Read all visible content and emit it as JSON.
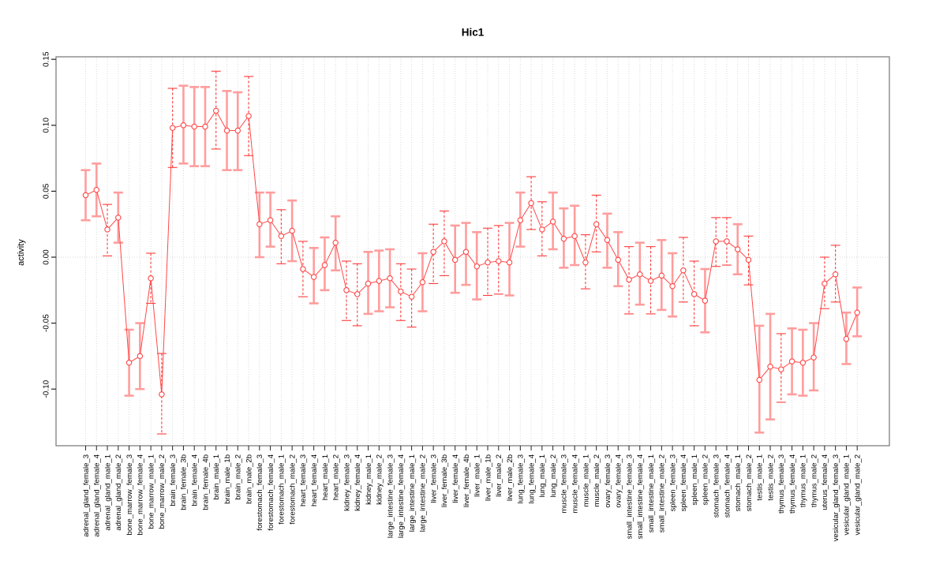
{
  "chart_data": {
    "type": "line",
    "title": "Hic1",
    "xlabel": "",
    "ylabel": "activity",
    "ylim": [
      -0.145,
      0.152
    ],
    "yticks": [
      0.15,
      0.1,
      0.05,
      0,
      -0.05,
      -0.1
    ],
    "ytick_labels": [
      "0.15",
      "0.10",
      "0.05",
      "0.00",
      "-0.05",
      "-0.10"
    ],
    "grid": {
      "vertical_dotted_per_category": true,
      "zero_line_dotted": true
    },
    "legend": null,
    "marker": "open-circle",
    "error_bars": true,
    "series": [
      {
        "name": "activity",
        "points": [
          {
            "label": "adrenal_gland_female_3",
            "value": 0.047,
            "lo": 0.028,
            "hi": 0.066,
            "bar": "light"
          },
          {
            "label": "adrenal_gland_female_4",
            "value": 0.051,
            "lo": 0.031,
            "hi": 0.071,
            "bar": "light"
          },
          {
            "label": "adrenal_gland_male_1",
            "value": 0.021,
            "lo": 0.001,
            "hi": 0.04,
            "bar": "dark"
          },
          {
            "label": "adrenal_gland_male_2",
            "value": 0.03,
            "lo": 0.011,
            "hi": 0.049,
            "bar": "light"
          },
          {
            "label": "bone_marrow_female_3",
            "value": -0.08,
            "lo": -0.105,
            "hi": -0.055,
            "bar": "light"
          },
          {
            "label": "bone_marrow_female_4",
            "value": -0.075,
            "lo": -0.1,
            "hi": -0.05,
            "bar": "light"
          },
          {
            "label": "bone_marrow_male_1",
            "value": -0.016,
            "lo": -0.035,
            "hi": 0.003,
            "bar": "dark"
          },
          {
            "label": "bone_marrow_male_2",
            "value": -0.104,
            "lo": -0.134,
            "hi": -0.073,
            "bar": "dark"
          },
          {
            "label": "brain_female_3",
            "value": 0.098,
            "lo": 0.068,
            "hi": 0.128,
            "bar": "dark"
          },
          {
            "label": "brain_female_3b",
            "value": 0.1,
            "lo": 0.071,
            "hi": 0.13,
            "bar": "light"
          },
          {
            "label": "brain_female_4",
            "value": 0.099,
            "lo": 0.069,
            "hi": 0.129,
            "bar": "light"
          },
          {
            "label": "brain_female_4b",
            "value": 0.099,
            "lo": 0.069,
            "hi": 0.129,
            "bar": "light"
          },
          {
            "label": "brain_male_1",
            "value": 0.111,
            "lo": 0.082,
            "hi": 0.141,
            "bar": "dark"
          },
          {
            "label": "brain_male_1b",
            "value": 0.096,
            "lo": 0.066,
            "hi": 0.126,
            "bar": "light"
          },
          {
            "label": "brain_male_2",
            "value": 0.096,
            "lo": 0.066,
            "hi": 0.125,
            "bar": "light"
          },
          {
            "label": "brain_male_2b",
            "value": 0.107,
            "lo": 0.077,
            "hi": 0.137,
            "bar": "dark"
          },
          {
            "label": "forestomach_female_3",
            "value": 0.025,
            "lo": 0.0,
            "hi": 0.049,
            "bar": "light"
          },
          {
            "label": "forestomach_female_4",
            "value": 0.028,
            "lo": 0.008,
            "hi": 0.049,
            "bar": "light"
          },
          {
            "label": "forestomach_male_1",
            "value": 0.016,
            "lo": -0.005,
            "hi": 0.036,
            "bar": "dark"
          },
          {
            "label": "forestomach_male_2",
            "value": 0.02,
            "lo": -0.003,
            "hi": 0.043,
            "bar": "light"
          },
          {
            "label": "heart_female_3",
            "value": -0.009,
            "lo": -0.03,
            "hi": 0.012,
            "bar": "dark"
          },
          {
            "label": "heart_female_4",
            "value": -0.015,
            "lo": -0.035,
            "hi": 0.007,
            "bar": "light"
          },
          {
            "label": "heart_male_1",
            "value": -0.006,
            "lo": -0.025,
            "hi": 0.015,
            "bar": "light"
          },
          {
            "label": "heart_male_2",
            "value": 0.011,
            "lo": -0.01,
            "hi": 0.031,
            "bar": "light"
          },
          {
            "label": "kidney_female_3",
            "value": -0.025,
            "lo": -0.048,
            "hi": -0.003,
            "bar": "dark"
          },
          {
            "label": "kidney_female_4",
            "value": -0.028,
            "lo": -0.052,
            "hi": -0.005,
            "bar": "dark"
          },
          {
            "label": "kidney_male_1",
            "value": -0.02,
            "lo": -0.043,
            "hi": 0.004,
            "bar": "light"
          },
          {
            "label": "kidney_male_2",
            "value": -0.018,
            "lo": -0.041,
            "hi": 0.005,
            "bar": "light"
          },
          {
            "label": "large_intestine_female_3",
            "value": -0.016,
            "lo": -0.038,
            "hi": 0.006,
            "bar": "light"
          },
          {
            "label": "large_intestine_female_4",
            "value": -0.026,
            "lo": -0.048,
            "hi": -0.005,
            "bar": "dark"
          },
          {
            "label": "large_intestine_male_1",
            "value": -0.03,
            "lo": -0.053,
            "hi": -0.009,
            "bar": "dark"
          },
          {
            "label": "large_intestine_male_2",
            "value": -0.019,
            "lo": -0.041,
            "hi": 0.003,
            "bar": "light"
          },
          {
            "label": "liver_female_3",
            "value": 0.004,
            "lo": -0.02,
            "hi": 0.025,
            "bar": "dark"
          },
          {
            "label": "liver_female_3b",
            "value": 0.012,
            "lo": -0.014,
            "hi": 0.035,
            "bar": "dark"
          },
          {
            "label": "liver_female_4",
            "value": -0.002,
            "lo": -0.027,
            "hi": 0.024,
            "bar": "light"
          },
          {
            "label": "liver_female_4b",
            "value": 0.004,
            "lo": -0.021,
            "hi": 0.026,
            "bar": "light"
          },
          {
            "label": "liver_male_1",
            "value": -0.007,
            "lo": -0.032,
            "hi": 0.019,
            "bar": "light"
          },
          {
            "label": "liver_male_1b",
            "value": -0.004,
            "lo": -0.029,
            "hi": 0.022,
            "bar": "dark"
          },
          {
            "label": "liver_male_2",
            "value": -0.003,
            "lo": -0.028,
            "hi": 0.024,
            "bar": "dark"
          },
          {
            "label": "liver_male_2b",
            "value": -0.004,
            "lo": -0.029,
            "hi": 0.026,
            "bar": "light"
          },
          {
            "label": "lung_female_3",
            "value": 0.028,
            "lo": 0.008,
            "hi": 0.049,
            "bar": "light"
          },
          {
            "label": "lung_female_4",
            "value": 0.041,
            "lo": 0.021,
            "hi": 0.061,
            "bar": "dark"
          },
          {
            "label": "lung_male_1",
            "value": 0.021,
            "lo": 0.001,
            "hi": 0.042,
            "bar": "dark"
          },
          {
            "label": "lung_male_2",
            "value": 0.027,
            "lo": 0.006,
            "hi": 0.049,
            "bar": "light"
          },
          {
            "label": "muscle_female_3",
            "value": 0.014,
            "lo": -0.008,
            "hi": 0.037,
            "bar": "light"
          },
          {
            "label": "muscle_female_4",
            "value": 0.016,
            "lo": -0.006,
            "hi": 0.039,
            "bar": "light"
          },
          {
            "label": "muscle_male_1",
            "value": -0.004,
            "lo": -0.024,
            "hi": 0.017,
            "bar": "dark"
          },
          {
            "label": "muscle_male_2",
            "value": 0.025,
            "lo": 0.004,
            "hi": 0.047,
            "bar": "dark"
          },
          {
            "label": "ovary_female_3",
            "value": 0.013,
            "lo": -0.008,
            "hi": 0.033,
            "bar": "light"
          },
          {
            "label": "ovary_female_4",
            "value": -0.002,
            "lo": -0.022,
            "hi": 0.019,
            "bar": "light"
          },
          {
            "label": "small_intestine_female_3",
            "value": -0.017,
            "lo": -0.043,
            "hi": 0.008,
            "bar": "dark"
          },
          {
            "label": "small_intestine_female_4",
            "value": -0.013,
            "lo": -0.036,
            "hi": 0.011,
            "bar": "light"
          },
          {
            "label": "small_intestine_male_1",
            "value": -0.018,
            "lo": -0.043,
            "hi": 0.008,
            "bar": "dark"
          },
          {
            "label": "small_intestine_male_2",
            "value": -0.014,
            "lo": -0.04,
            "hi": 0.013,
            "bar": "light"
          },
          {
            "label": "spleen_female_3",
            "value": -0.022,
            "lo": -0.045,
            "hi": 0.003,
            "bar": "light"
          },
          {
            "label": "spleen_female_4",
            "value": -0.01,
            "lo": -0.034,
            "hi": 0.015,
            "bar": "dark"
          },
          {
            "label": "spleen_male_1",
            "value": -0.028,
            "lo": -0.052,
            "hi": -0.003,
            "bar": "dark"
          },
          {
            "label": "spleen_male_2",
            "value": -0.033,
            "lo": -0.057,
            "hi": -0.009,
            "bar": "light"
          },
          {
            "label": "stomach_female_3",
            "value": 0.012,
            "lo": -0.007,
            "hi": 0.03,
            "bar": "dark"
          },
          {
            "label": "stomach_female_4",
            "value": 0.012,
            "lo": -0.006,
            "hi": 0.03,
            "bar": "dark"
          },
          {
            "label": "stomach_male_1",
            "value": 0.006,
            "lo": -0.013,
            "hi": 0.025,
            "bar": "light"
          },
          {
            "label": "stomach_male_2",
            "value": -0.002,
            "lo": -0.021,
            "hi": 0.016,
            "bar": "dark"
          },
          {
            "label": "testis_male_1",
            "value": -0.093,
            "lo": -0.133,
            "hi": -0.052,
            "bar": "light"
          },
          {
            "label": "testis_male_2",
            "value": -0.083,
            "lo": -0.123,
            "hi": -0.043,
            "bar": "light"
          },
          {
            "label": "thymus_female_3",
            "value": -0.085,
            "lo": -0.11,
            "hi": -0.058,
            "bar": "dark"
          },
          {
            "label": "thymus_female_4",
            "value": -0.079,
            "lo": -0.104,
            "hi": -0.054,
            "bar": "light"
          },
          {
            "label": "thymus_male_1",
            "value": -0.08,
            "lo": -0.105,
            "hi": -0.055,
            "bar": "light"
          },
          {
            "label": "thymus_male_2",
            "value": -0.076,
            "lo": -0.101,
            "hi": -0.05,
            "bar": "light"
          },
          {
            "label": "uterus_female_4",
            "value": -0.02,
            "lo": -0.039,
            "hi": 0.0,
            "bar": "dark"
          },
          {
            "label": "vesicular_gland_female_3",
            "value": -0.013,
            "lo": -0.034,
            "hi": 0.009,
            "bar": "dark"
          },
          {
            "label": "vesicular_gland_male_1",
            "value": -0.062,
            "lo": -0.081,
            "hi": -0.042,
            "bar": "light"
          },
          {
            "label": "vesicular_gland_male_2",
            "value": -0.042,
            "lo": -0.06,
            "hi": -0.023,
            "bar": "light"
          }
        ]
      }
    ]
  },
  "colors": {
    "line": "#ff4747",
    "marker_stroke": "#ff4747",
    "marker_fill": "#ffffff",
    "error_bar_light": "#ff9d9d",
    "error_bar_dark": "#ff3b3b",
    "grid": "#dadada",
    "zero_line": "#d4d4d4",
    "frame": "#888888",
    "tick": "#222222",
    "text": "#000000"
  }
}
